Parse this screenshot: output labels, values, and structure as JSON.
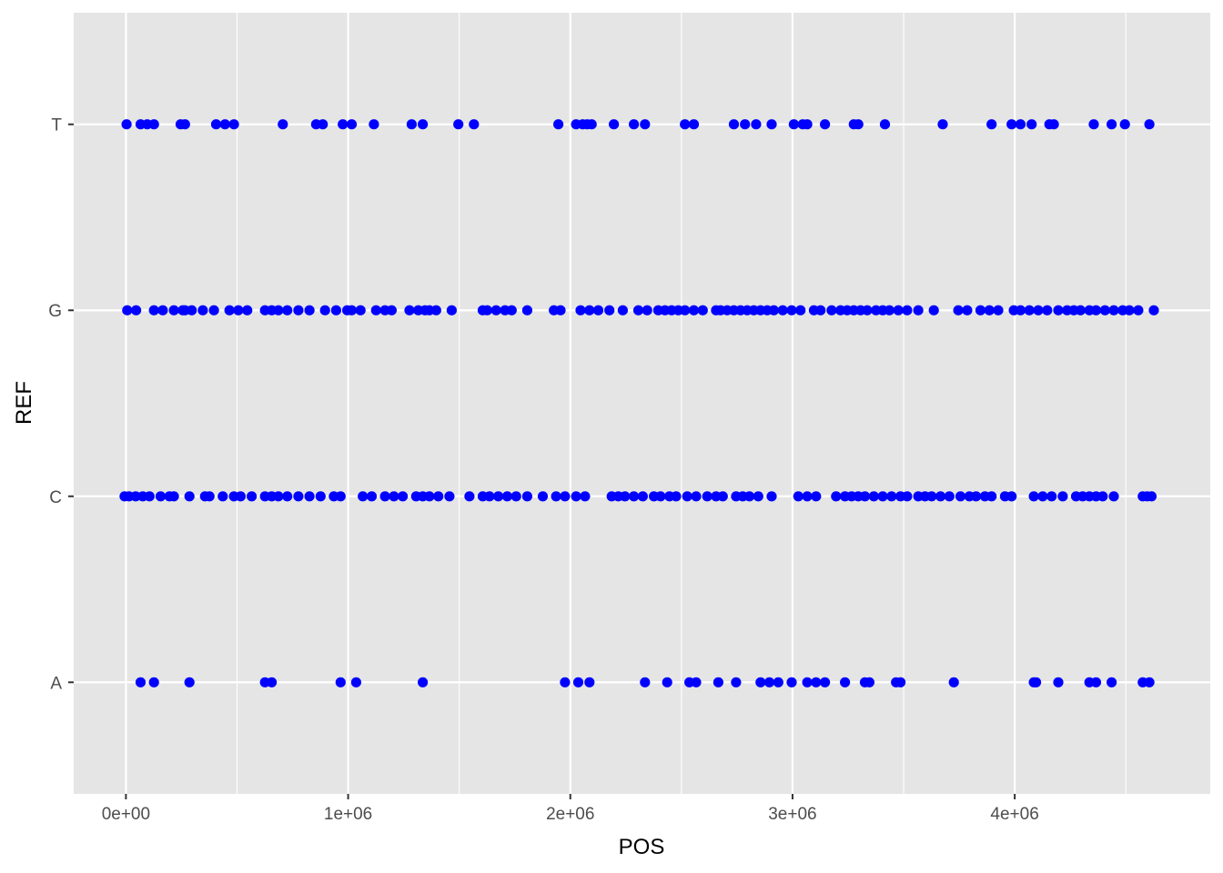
{
  "chart_data": {
    "type": "scatter",
    "title": "",
    "xlabel": "POS",
    "ylabel": "REF",
    "xlim": [
      -235000,
      4880000
    ],
    "x_ticks": [
      {
        "value": 0,
        "label": "0e+00"
      },
      {
        "value": 1000000,
        "label": "1e+06"
      },
      {
        "value": 2000000,
        "label": "2e+06"
      },
      {
        "value": 3000000,
        "label": "3e+06"
      },
      {
        "value": 4000000,
        "label": "4e+06"
      }
    ],
    "categories": [
      "A",
      "C",
      "G",
      "T"
    ],
    "point_color": "#0000ff",
    "panel_color": "#e5e5e5",
    "grid": true,
    "legend": "none",
    "series": [
      {
        "category": "T",
        "x": [
          3000,
          66000,
          96000,
          126000,
          246000,
          266000,
          406000,
          446000,
          486000,
          706000,
          856000,
          886000,
          976000,
          1016000,
          1116000,
          1286000,
          1336000,
          1496000,
          1566000,
          1946000,
          2026000,
          2056000,
          2076000,
          2096000,
          2196000,
          2286000,
          2336000,
          2516000,
          2556000,
          2736000,
          2786000,
          2836000,
          2906000,
          3006000,
          3046000,
          3066000,
          3146000,
          3276000,
          3296000,
          3416000,
          3676000,
          3896000,
          3986000,
          4026000,
          4076000,
          4156000,
          4176000,
          4356000,
          4436000,
          4496000,
          4606000
        ]
      },
      {
        "category": "G",
        "x": [
          6000,
          46000,
          126000,
          166000,
          216000,
          256000,
          266000,
          296000,
          346000,
          396000,
          466000,
          506000,
          546000,
          626000,
          656000,
          686000,
          726000,
          776000,
          826000,
          896000,
          946000,
          996000,
          1016000,
          1056000,
          1126000,
          1166000,
          1196000,
          1276000,
          1316000,
          1346000,
          1366000,
          1396000,
          1466000,
          1606000,
          1626000,
          1666000,
          1706000,
          1736000,
          1806000,
          1926000,
          1956000,
          2046000,
          2086000,
          2126000,
          2176000,
          2236000,
          2306000,
          2346000,
          2396000,
          2426000,
          2456000,
          2486000,
          2516000,
          2556000,
          2596000,
          2656000,
          2676000,
          2706000,
          2736000,
          2766000,
          2796000,
          2826000,
          2856000,
          2886000,
          2916000,
          2956000,
          2996000,
          3036000,
          3096000,
          3126000,
          3176000,
          3216000,
          3246000,
          3276000,
          3306000,
          3336000,
          3376000,
          3406000,
          3436000,
          3476000,
          3516000,
          3566000,
          3636000,
          3746000,
          3786000,
          3846000,
          3886000,
          3926000,
          3996000,
          4026000,
          4066000,
          4106000,
          4146000,
          4196000,
          4236000,
          4266000,
          4296000,
          4336000,
          4366000,
          4406000,
          4446000,
          4486000,
          4516000,
          4556000,
          4626000
        ]
      },
      {
        "category": "C",
        "x": [
          -6000,
          14000,
          44000,
          76000,
          106000,
          156000,
          196000,
          216000,
          286000,
          356000,
          376000,
          436000,
          486000,
          516000,
          566000,
          626000,
          656000,
          686000,
          726000,
          776000,
          826000,
          876000,
          936000,
          966000,
          1066000,
          1106000,
          1166000,
          1206000,
          1246000,
          1306000,
          1336000,
          1366000,
          1406000,
          1456000,
          1546000,
          1606000,
          1636000,
          1676000,
          1716000,
          1756000,
          1806000,
          1876000,
          1936000,
          1976000,
          2026000,
          2066000,
          2186000,
          2216000,
          2246000,
          2286000,
          2326000,
          2376000,
          2406000,
          2446000,
          2476000,
          2526000,
          2566000,
          2616000,
          2656000,
          2686000,
          2746000,
          2776000,
          2806000,
          2846000,
          2906000,
          3026000,
          3066000,
          3106000,
          3196000,
          3236000,
          3266000,
          3296000,
          3326000,
          3366000,
          3406000,
          3446000,
          3486000,
          3516000,
          3566000,
          3596000,
          3626000,
          3666000,
          3706000,
          3756000,
          3796000,
          3826000,
          3866000,
          3896000,
          3956000,
          3986000,
          4086000,
          4126000,
          4166000,
          4216000,
          4276000,
          4306000,
          4336000,
          4366000,
          4396000,
          4446000,
          4576000,
          4596000,
          4616000
        ]
      },
      {
        "category": "A",
        "x": [
          66000,
          126000,
          286000,
          626000,
          656000,
          966000,
          1036000,
          1336000,
          1976000,
          2036000,
          2086000,
          2336000,
          2436000,
          2536000,
          2566000,
          2666000,
          2746000,
          2856000,
          2896000,
          2936000,
          2996000,
          3066000,
          3106000,
          3146000,
          3236000,
          3326000,
          3346000,
          3466000,
          3486000,
          3726000,
          4086000,
          4096000,
          4196000,
          4336000,
          4366000,
          4436000,
          4576000,
          4606000
        ]
      }
    ]
  }
}
